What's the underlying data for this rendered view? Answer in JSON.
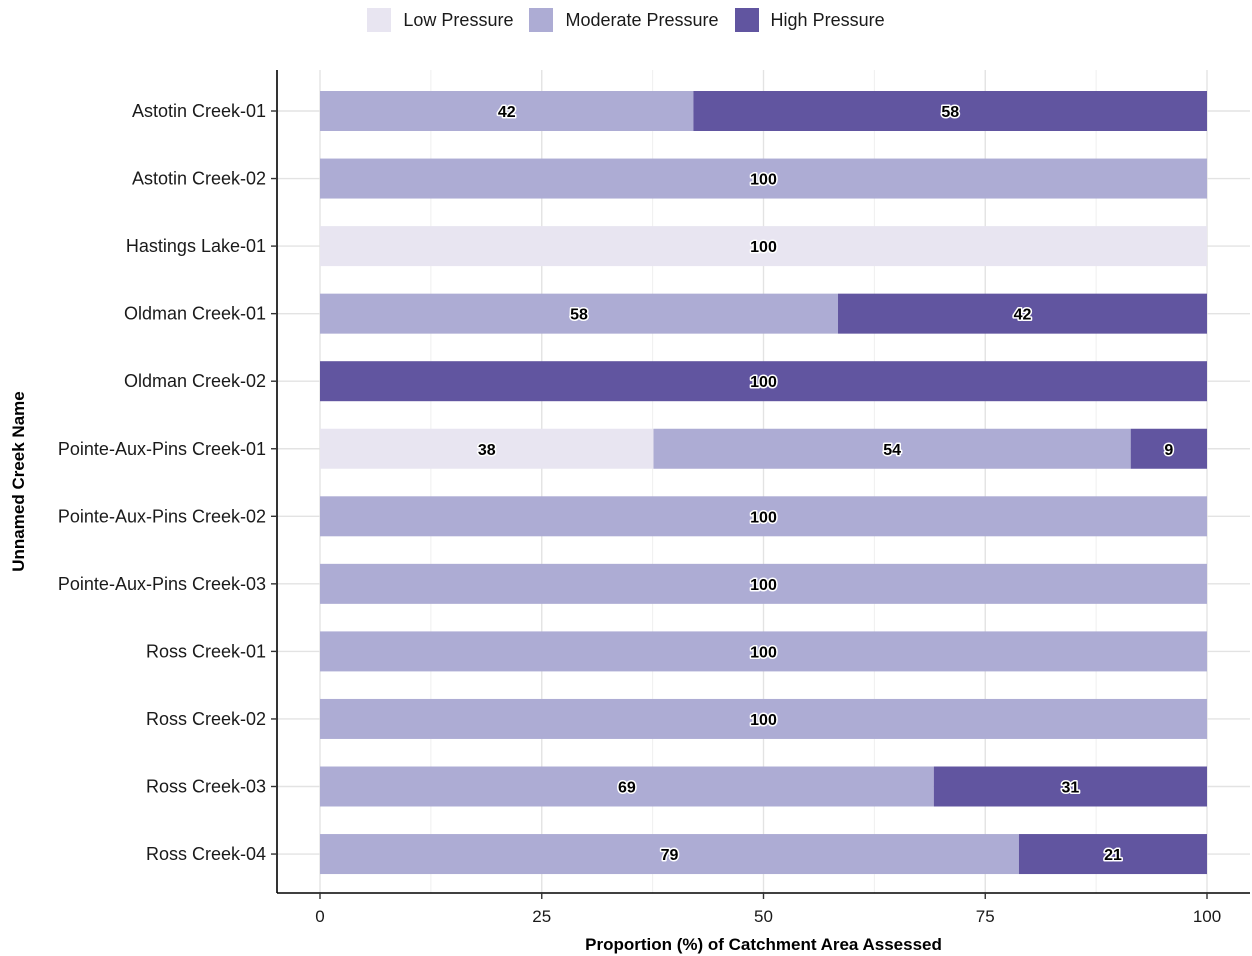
{
  "chart_data": {
    "type": "bar",
    "orientation": "horizontal",
    "stacked": true,
    "xlabel": "Proportion (%) of Catchment Area Assessed",
    "ylabel": "Unnamed Creek Name",
    "xlim": [
      0,
      100
    ],
    "xticks": [
      0,
      25,
      50,
      75,
      100
    ],
    "grid": true,
    "legend_position": "top",
    "categories": [
      "Astotin Creek-01",
      "Astotin Creek-02",
      "Hastings Lake-01",
      "Oldman Creek-01",
      "Oldman Creek-02",
      "Pointe-Aux-Pins Creek-01",
      "Pointe-Aux-Pins Creek-02",
      "Pointe-Aux-Pins Creek-03",
      "Ross Creek-01",
      "Ross Creek-02",
      "Ross Creek-03",
      "Ross Creek-04"
    ],
    "series": [
      {
        "name": "Low Pressure",
        "color": "#e8e5f1",
        "values": [
          0,
          0,
          100,
          0,
          0,
          37.6,
          0,
          0,
          0,
          0,
          0,
          0
        ],
        "labels": [
          "",
          "",
          "100",
          "",
          "",
          "38",
          "",
          "",
          "",
          "",
          "",
          ""
        ]
      },
      {
        "name": "Moderate Pressure",
        "color": "#adacd4",
        "values": [
          42.1,
          100,
          0,
          58.4,
          0,
          53.8,
          100,
          100,
          100,
          100,
          69.2,
          78.8
        ],
        "labels": [
          "42",
          "100",
          "",
          "58",
          "",
          "54",
          "100",
          "100",
          "100",
          "100",
          "69",
          "79"
        ]
      },
      {
        "name": "High Pressure",
        "color": "#6155a0",
        "values": [
          57.9,
          0,
          0,
          41.6,
          100,
          8.6,
          0,
          0,
          0,
          0,
          30.8,
          21.2
        ],
        "labels": [
          "58",
          "",
          "",
          "42",
          "100",
          "9",
          "",
          "",
          "",
          "",
          "31",
          "21"
        ]
      }
    ]
  }
}
